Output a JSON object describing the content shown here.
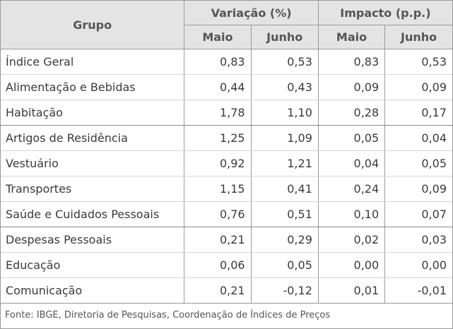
{
  "table": {
    "header": {
      "grupo": "Grupo",
      "variacao": "Variação (%)",
      "impacto": "Impacto (p.p.)",
      "sub": [
        "Maio",
        "Junho",
        "Maio",
        "Junho"
      ]
    },
    "rows": [
      {
        "label": "Índice Geral",
        "v_maio": "0,83",
        "v_junho": "0,53",
        "i_maio": "0,83",
        "i_junho": "0,53"
      },
      {
        "label": "Alimentação e Bebidas",
        "v_maio": "0,44",
        "v_junho": "0,43",
        "i_maio": "0,09",
        "i_junho": "0,09"
      },
      {
        "label": "Habitação",
        "v_maio": "1,78",
        "v_junho": "1,10",
        "i_maio": "0,28",
        "i_junho": "0,17"
      },
      {
        "label": "Artigos de Residência",
        "v_maio": "1,25",
        "v_junho": "1,09",
        "i_maio": "0,05",
        "i_junho": "0,04"
      },
      {
        "label": "Vestuário",
        "v_maio": "0,92",
        "v_junho": "1,21",
        "i_maio": "0,04",
        "i_junho": "0,05"
      },
      {
        "label": "Transportes",
        "v_maio": "1,15",
        "v_junho": "0,41",
        "i_maio": "0,24",
        "i_junho": "0,09"
      },
      {
        "label": "Saúde e Cuidados Pessoais",
        "v_maio": "0,76",
        "v_junho": "0,51",
        "i_maio": "0,10",
        "i_junho": "0,07"
      },
      {
        "label": "Despesas Pessoais",
        "v_maio": "0,21",
        "v_junho": "0,29",
        "i_maio": "0,02",
        "i_junho": "0,03"
      },
      {
        "label": "Educação",
        "v_maio": "0,06",
        "v_junho": "0,05",
        "i_maio": "0,00",
        "i_junho": "0,00"
      },
      {
        "label": "Comunicação",
        "v_maio": "0,21",
        "v_junho": "-0,12",
        "i_maio": "0,01",
        "i_junho": "-0,01"
      }
    ],
    "source": "Fonte: IBGE, Diretoria de Pesquisas, Coordenação de Índices de Preços"
  }
}
